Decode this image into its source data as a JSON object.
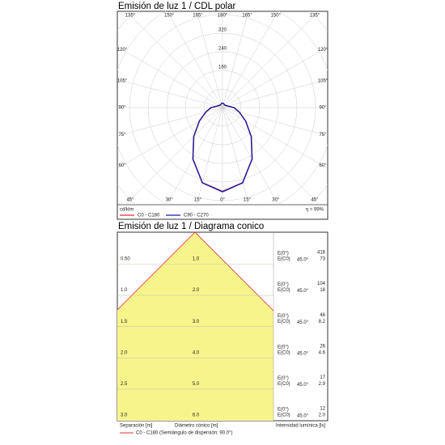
{
  "chart_data": [
    {
      "type": "polar",
      "title": "Emisión de luz 1 / CDL polar",
      "unit_label": "cd/klm",
      "efficiency_label": "η = 99%",
      "x": [
        0,
        15,
        30,
        45,
        60,
        75,
        90,
        105,
        120,
        135,
        150,
        165,
        180
      ],
      "series": [
        {
          "name": "C0 - C180",
          "color": "#e0303a",
          "values": [
            360,
            334,
            254,
            174,
            114,
            74,
            48,
            24,
            18,
            15,
            15,
            18,
            20
          ]
        },
        {
          "name": "C90 - C270",
          "color": "#1a1aa0",
          "values": [
            362,
            335,
            255,
            175,
            115,
            75,
            50,
            25,
            18,
            15,
            15,
            18,
            20
          ]
        }
      ],
      "xticks": [
        {
          "value": 0,
          "label": "0°"
        },
        {
          "value": 15,
          "label": "15°"
        },
        {
          "value": 30,
          "label": "30°"
        },
        {
          "value": 45,
          "label": "45°"
        },
        {
          "value": 60,
          "label": "60°"
        },
        {
          "value": 75,
          "label": "75°"
        },
        {
          "value": 90,
          "label": "90°"
        },
        {
          "value": 105,
          "label": "105°"
        },
        {
          "value": 120,
          "label": "120°"
        },
        {
          "value": 135,
          "label": "135°"
        },
        {
          "value": 150,
          "label": "150°"
        },
        {
          "value": 165,
          "label": "165°"
        },
        {
          "value": 180,
          "label": "180°"
        }
      ],
      "rticks": [
        160,
        240,
        320
      ],
      "grid": true
    },
    {
      "type": "cone",
      "title": "Emisión de luz 1 / Diagrama conico",
      "rows": [
        {
          "separation": "0.50",
          "diameter": "1.0",
          "e0_label": "E(0°)",
          "ec0_label": "E(C0)",
          "angle": "45.0°",
          "e0": "416",
          "ec0": "73"
        },
        {
          "separation": "1.0",
          "diameter": "2.0",
          "e0_label": "E(0°)",
          "ec0_label": "E(C0)",
          "angle": "45.0°",
          "e0": "104",
          "ec0": "18"
        },
        {
          "separation": "1.5",
          "diameter": "3.0",
          "e0_label": "E(0°)",
          "ec0_label": "E(C0)",
          "angle": "45.0°",
          "e0": "46",
          "ec0": "8.2"
        },
        {
          "separation": "2.0",
          "diameter": "4.0",
          "e0_label": "E(0°)",
          "ec0_label": "E(C0)",
          "angle": "45.0°",
          "e0": "26",
          "ec0": "4.6"
        },
        {
          "separation": "2.5",
          "diameter": "5.0",
          "e0_label": "E(0°)",
          "ec0_label": "E(C0)",
          "angle": "45.0°",
          "e0": "17",
          "ec0": "2.9"
        },
        {
          "separation": "3.0",
          "diameter": "6.0",
          "e0_label": "E(0°)",
          "ec0_label": "E(C0)",
          "angle": "45.0°",
          "e0": "12",
          "ec0": "2.0"
        }
      ],
      "footer": {
        "separation": "Separación [m]",
        "diameter": "Diámetro cónico [m]",
        "illuminance": "Intensidad lumínica [lx]"
      },
      "legend": {
        "name": "C0 - C180 (Semiángulo de dispersión: 90.0°)",
        "color": "#e0303a"
      }
    }
  ]
}
